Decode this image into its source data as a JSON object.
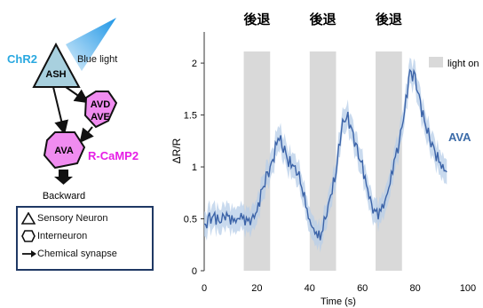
{
  "circuit": {
    "chr2_label": "ChR2",
    "blue_light_label": "Blue light",
    "neurons": {
      "ash": "ASH",
      "avd": "AVD",
      "ave": "AVE",
      "ava": "AVA"
    },
    "rcamp_label": "R-CaMP2",
    "output_label": "Backward",
    "colors": {
      "chr2": "#29a8e0",
      "ash_fill": "#a8d0de",
      "inter_fill": "#f08cf0",
      "rcamp": "#e61ee6"
    }
  },
  "legend": {
    "sensory": "Sensory Neuron",
    "inter": "Interneuron",
    "synapse": "Chemical synapse"
  },
  "chart_data": {
    "type": "line",
    "ylabel": "ΔR/R",
    "xlabel": "Time (s)",
    "xlim": [
      0,
      100
    ],
    "ylim": [
      0,
      2.3
    ],
    "xticks": [
      0,
      20,
      40,
      60,
      80,
      100
    ],
    "yticks": [
      0,
      0.5,
      1,
      1.5,
      2
    ],
    "stim_label": "後退",
    "stim_periods": [
      [
        15,
        25
      ],
      [
        40,
        50
      ],
      [
        65,
        75
      ]
    ],
    "legend_entry": "light on",
    "series": [
      {
        "name": "AVA",
        "color": "#3b63a8",
        "x": [
          0,
          2,
          4,
          6,
          8,
          10,
          12,
          14,
          16,
          18,
          20,
          22,
          24,
          26,
          28,
          30,
          32,
          34,
          36,
          38,
          40,
          42,
          44,
          46,
          48,
          50,
          52,
          54,
          56,
          58,
          60,
          62,
          64,
          66,
          68,
          70,
          72,
          74,
          76,
          78,
          80,
          82,
          84,
          86,
          88,
          90,
          92
        ],
        "y": [
          0.42,
          0.5,
          0.52,
          0.48,
          0.55,
          0.5,
          0.47,
          0.52,
          0.48,
          0.5,
          0.58,
          0.78,
          0.92,
          1.05,
          1.3,
          1.2,
          1.05,
          1.0,
          0.9,
          0.7,
          0.48,
          0.38,
          0.32,
          0.5,
          0.72,
          0.95,
          1.38,
          1.5,
          1.35,
          1.15,
          1.0,
          0.78,
          0.6,
          0.55,
          0.62,
          0.78,
          1.05,
          1.25,
          1.55,
          1.92,
          1.85,
          1.6,
          1.4,
          1.25,
          1.12,
          1.0,
          0.95
        ]
      }
    ]
  }
}
